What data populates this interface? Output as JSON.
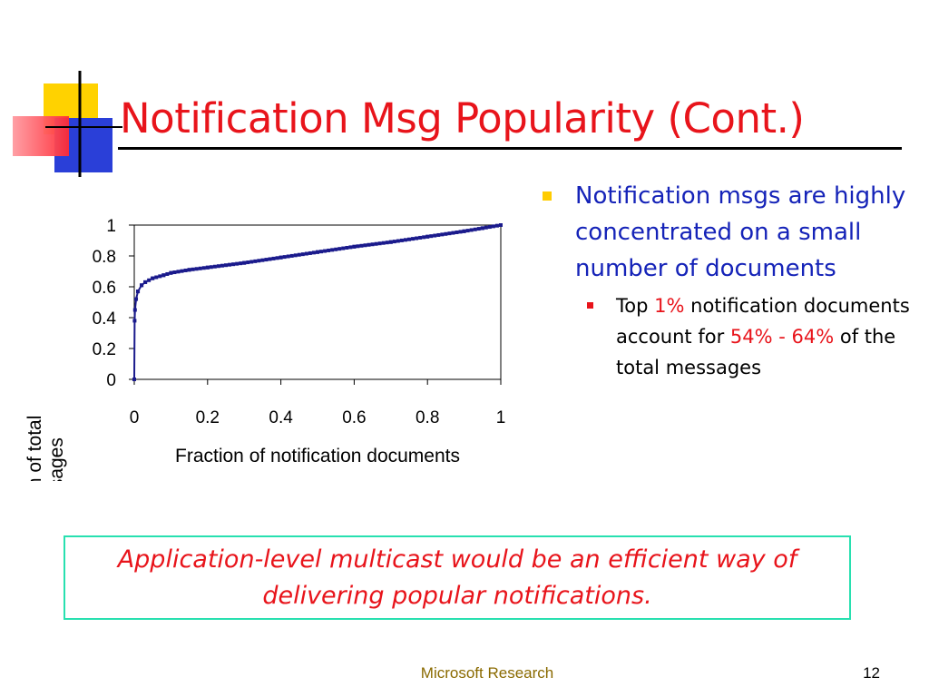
{
  "slide": {
    "title": "Notification Msg Popularity (Cont.)",
    "accent_color": "#e8141b",
    "bullet_color": "#1523b8"
  },
  "bullets": {
    "main": "Notification msgs are highly concentrated on a small number of documents",
    "sub": {
      "part1": "Top ",
      "highlight1": "1%",
      "part2": " notification documents account for ",
      "highlight2": "54% - 64%",
      "part3": " of the total messages"
    }
  },
  "callout": {
    "text": "Application-level multicast would be an efficient way of delivering popular notifications."
  },
  "footer": {
    "text": "Microsoft Research",
    "page_number": "12"
  },
  "chart_data": {
    "type": "line",
    "xlabel": "Fraction of notification documents",
    "ylabel": "Fraction of total messages",
    "xlim": [
      0,
      1
    ],
    "ylim": [
      0,
      1
    ],
    "x_ticks": [
      "0",
      "0.2",
      "0.4",
      "0.6",
      "0.8",
      "1"
    ],
    "y_ticks": [
      "0",
      "0.2",
      "0.4",
      "0.6",
      "0.8",
      "1"
    ],
    "grid": false,
    "legend": "none",
    "series_color": "#1a1a8c",
    "series": [
      {
        "x": [
          0,
          0.001,
          0.002,
          0.005,
          0.01,
          0.02,
          0.03,
          0.05,
          0.08,
          0.1,
          0.15,
          0.2,
          0.3,
          0.4,
          0.5,
          0.6,
          0.7,
          0.8,
          0.9,
          0.95,
          1.0
        ],
        "y": [
          0,
          0.38,
          0.45,
          0.52,
          0.57,
          0.61,
          0.63,
          0.655,
          0.675,
          0.69,
          0.71,
          0.725,
          0.755,
          0.79,
          0.825,
          0.86,
          0.89,
          0.925,
          0.96,
          0.98,
          1.0
        ]
      }
    ]
  }
}
